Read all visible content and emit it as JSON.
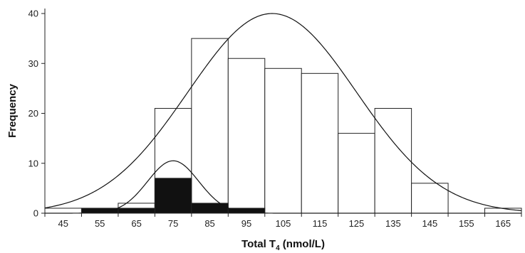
{
  "chart_data": {
    "type": "bar",
    "xlabel": "Total T",
    "xlabel_sub": "4",
    "xlabel_unit": " (nmol/L)",
    "ylabel": "Frequency",
    "categories": [
      45,
      55,
      65,
      75,
      85,
      95,
      105,
      115,
      125,
      135,
      145,
      155,
      165
    ],
    "bin_width": 10,
    "xlim": [
      40,
      170
    ],
    "ylim": [
      0,
      41
    ],
    "yticks": [
      0,
      10,
      20,
      30,
      40
    ],
    "grid": false,
    "series": [
      {
        "fill": "#ffffff",
        "values": [
          1,
          1,
          2,
          21,
          35,
          31,
          29,
          28,
          16,
          21,
          6,
          0,
          1
        ]
      },
      {
        "fill": "#111111",
        "values": [
          0,
          1,
          1,
          7,
          2,
          1,
          0,
          0,
          0,
          0,
          0,
          0,
          0
        ]
      }
    ],
    "curves": [
      {
        "kind": "normal",
        "mean": 102,
        "sd": 23,
        "peak": 40
      },
      {
        "kind": "normal",
        "mean": 75,
        "sd": 7,
        "peak": 10.5
      }
    ]
  }
}
